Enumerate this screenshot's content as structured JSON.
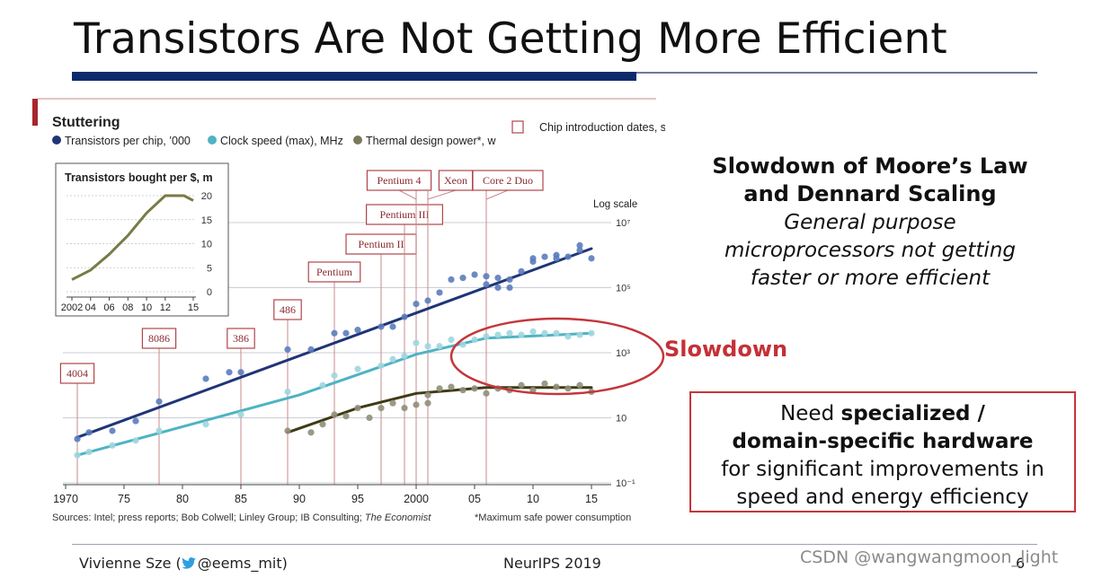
{
  "slide": {
    "title": "Transistors Are Not Getting More Efficient",
    "heading_line1": "Slowdown of Moore’s Law",
    "heading_line2": "and Dennard Scaling",
    "sub_line1": "General purpose",
    "sub_line2": "microprocessors not getting",
    "sub_line3": "faster or more efficient",
    "slowdown_label": "Slowdown",
    "need_box": {
      "l1_pre": "Need ",
      "l1_bold": "specialized /",
      "l2_bold": "domain-specific hardware",
      "l3": "for significant improvements in",
      "l4": "speed and energy efficiency"
    },
    "footer": {
      "author_name": "Vivienne Sze (",
      "author_handle": "@eems_mit)",
      "venue": "NeurIPS 2019",
      "page_number": "6"
    },
    "watermark": "CSDN @wangwangmoon_light",
    "colors": {
      "title_bar": "#0d2b6b",
      "accent_red": "#c43137",
      "transistors": "#1f3577",
      "clock": "#4fb3c3",
      "power": "#5a5a2a"
    }
  },
  "chart_data": [
    {
      "type": "scatter",
      "title": "Stuttering",
      "log_scale_label": "Log scale",
      "legend": [
        {
          "label": "Transistors per chip, ’000",
          "color": "#1f3577"
        },
        {
          "label": "Clock speed (max), MHz",
          "color": "#4fb3c3"
        },
        {
          "label": "Thermal design power*, w",
          "color": "#7a7a5a"
        }
      ],
      "legend_note": "Chip introduction dates, selected",
      "x_ticks": [
        "1970",
        "75",
        "80",
        "85",
        "90",
        "95",
        "2000",
        "05",
        "10",
        "15"
      ],
      "y_ticks": [
        "10⁷",
        "10⁵",
        "10³",
        "10",
        "10⁻¹"
      ],
      "xlim": [
        1970,
        2015
      ],
      "ylim_log10": [
        -1,
        7
      ],
      "chips": [
        {
          "name": "4004",
          "year": 1971
        },
        {
          "name": "8086",
          "year": 1978
        },
        {
          "name": "386",
          "year": 1985
        },
        {
          "name": "486",
          "year": 1989
        },
        {
          "name": "Pentium",
          "year": 1993
        },
        {
          "name": "Pentium II",
          "year": 1997
        },
        {
          "name": "Pentium III",
          "year": 1999
        },
        {
          "name": "Pentium 4",
          "year": 2000
        },
        {
          "name": "Xeon",
          "year": 2001
        },
        {
          "name": "Core 2 Duo",
          "year": 2006
        }
      ],
      "series": [
        {
          "name": "Transistors per chip, ’000",
          "points": [
            [
              1971,
              0.35
            ],
            [
              1972,
              0.55
            ],
            [
              1974,
              0.6
            ],
            [
              1976,
              0.9
            ],
            [
              1978,
              1.5
            ],
            [
              1982,
              2.2
            ],
            [
              1984,
              2.4
            ],
            [
              1985,
              2.4
            ],
            [
              1989,
              3.1
            ],
            [
              1991,
              3.1
            ],
            [
              1993,
              3.6
            ],
            [
              1994,
              3.6
            ],
            [
              1995,
              3.7
            ],
            [
              1997,
              3.8
            ],
            [
              1998,
              3.8
            ],
            [
              1999,
              4.1
            ],
            [
              2000,
              4.5
            ],
            [
              2001,
              4.6
            ],
            [
              2002,
              4.85
            ],
            [
              2003,
              5.25
            ],
            [
              2004,
              5.3
            ],
            [
              2005,
              5.4
            ],
            [
              2006,
              5.35
            ],
            [
              2006,
              5.1
            ],
            [
              2007,
              5.3
            ],
            [
              2007,
              5.0
            ],
            [
              2008,
              5.25
            ],
            [
              2008,
              5.0
            ],
            [
              2009,
              5.5
            ],
            [
              2010,
              5.9
            ],
            [
              2010,
              5.8
            ],
            [
              2011,
              5.95
            ],
            [
              2012,
              6.0
            ],
            [
              2012,
              5.9
            ],
            [
              2013,
              5.95
            ],
            [
              2014,
              6.15
            ],
            [
              2014,
              6.3
            ],
            [
              2015,
              5.9
            ]
          ],
          "trend": [
            [
              1971,
              0.4
            ],
            [
              2015,
              6.2
            ]
          ]
        },
        {
          "name": "Clock speed (max), MHz",
          "points": [
            [
              1971,
              -0.15
            ],
            [
              1972,
              -0.05
            ],
            [
              1974,
              0.15
            ],
            [
              1976,
              0.3
            ],
            [
              1978,
              0.6
            ],
            [
              1982,
              0.8
            ],
            [
              1985,
              1.1
            ],
            [
              1989,
              1.8
            ],
            [
              1992,
              2.0
            ],
            [
              1993,
              2.3
            ],
            [
              1995,
              2.5
            ],
            [
              1997,
              2.6
            ],
            [
              1998,
              2.8
            ],
            [
              1999,
              2.9
            ],
            [
              2000,
              3.3
            ],
            [
              2001,
              3.2
            ],
            [
              2002,
              3.2
            ],
            [
              2003,
              3.4
            ],
            [
              2004,
              3.25
            ],
            [
              2005,
              3.4
            ],
            [
              2006,
              3.5
            ],
            [
              2007,
              3.55
            ],
            [
              2008,
              3.6
            ],
            [
              2009,
              3.55
            ],
            [
              2010,
              3.65
            ],
            [
              2011,
              3.6
            ],
            [
              2012,
              3.6
            ],
            [
              2013,
              3.5
            ],
            [
              2014,
              3.55
            ],
            [
              2015,
              3.6
            ]
          ],
          "trend": [
            [
              1971,
              -0.15
            ],
            [
              1990,
              1.7
            ],
            [
              2000,
              2.95
            ],
            [
              2006,
              3.45
            ],
            [
              2015,
              3.6
            ]
          ]
        },
        {
          "name": "Thermal design power*, w",
          "points": [
            [
              1989,
              0.6
            ],
            [
              1991,
              0.55
            ],
            [
              1992,
              0.8
            ],
            [
              1993,
              1.1
            ],
            [
              1994,
              1.05
            ],
            [
              1995,
              1.3
            ],
            [
              1996,
              1.0
            ],
            [
              1997,
              1.3
            ],
            [
              1998,
              1.45
            ],
            [
              1999,
              1.3
            ],
            [
              2000,
              1.4
            ],
            [
              2001,
              1.45
            ],
            [
              2001,
              1.7
            ],
            [
              2002,
              1.9
            ],
            [
              2003,
              1.95
            ],
            [
              2004,
              1.85
            ],
            [
              2005,
              1.9
            ],
            [
              2006,
              1.75
            ],
            [
              2007,
              1.9
            ],
            [
              2008,
              1.85
            ],
            [
              2009,
              2.0
            ],
            [
              2010,
              1.85
            ],
            [
              2011,
              2.05
            ],
            [
              2012,
              1.95
            ],
            [
              2013,
              1.9
            ],
            [
              2014,
              2.0
            ],
            [
              2015,
              1.8
            ]
          ],
          "trend": [
            [
              1989,
              0.55
            ],
            [
              1995,
              1.3
            ],
            [
              2000,
              1.75
            ],
            [
              2006,
              1.93
            ],
            [
              2015,
              1.93
            ]
          ]
        }
      ]
    },
    {
      "type": "line",
      "title": "Transistors bought per $, m",
      "x_ticks": [
        "2002",
        "04",
        "06",
        "08",
        "10",
        "12",
        "15"
      ],
      "y_ticks": [
        "20",
        "15",
        "10",
        "5",
        "0"
      ],
      "xlim": [
        2002,
        2015
      ],
      "ylim": [
        0,
        20
      ],
      "x": [
        2002,
        2004,
        2006,
        2008,
        2010,
        2012,
        2014,
        2015
      ],
      "values": [
        2.5,
        4.5,
        7.8,
        11.7,
        16.4,
        20,
        20,
        19
      ]
    }
  ],
  "sources": {
    "left": "Sources: Intel; press reports; Bob Colwell; Linley Group; IB Consulting; ",
    "left_italic": "The Economist",
    "right": "*Maximum safe power consumption"
  }
}
